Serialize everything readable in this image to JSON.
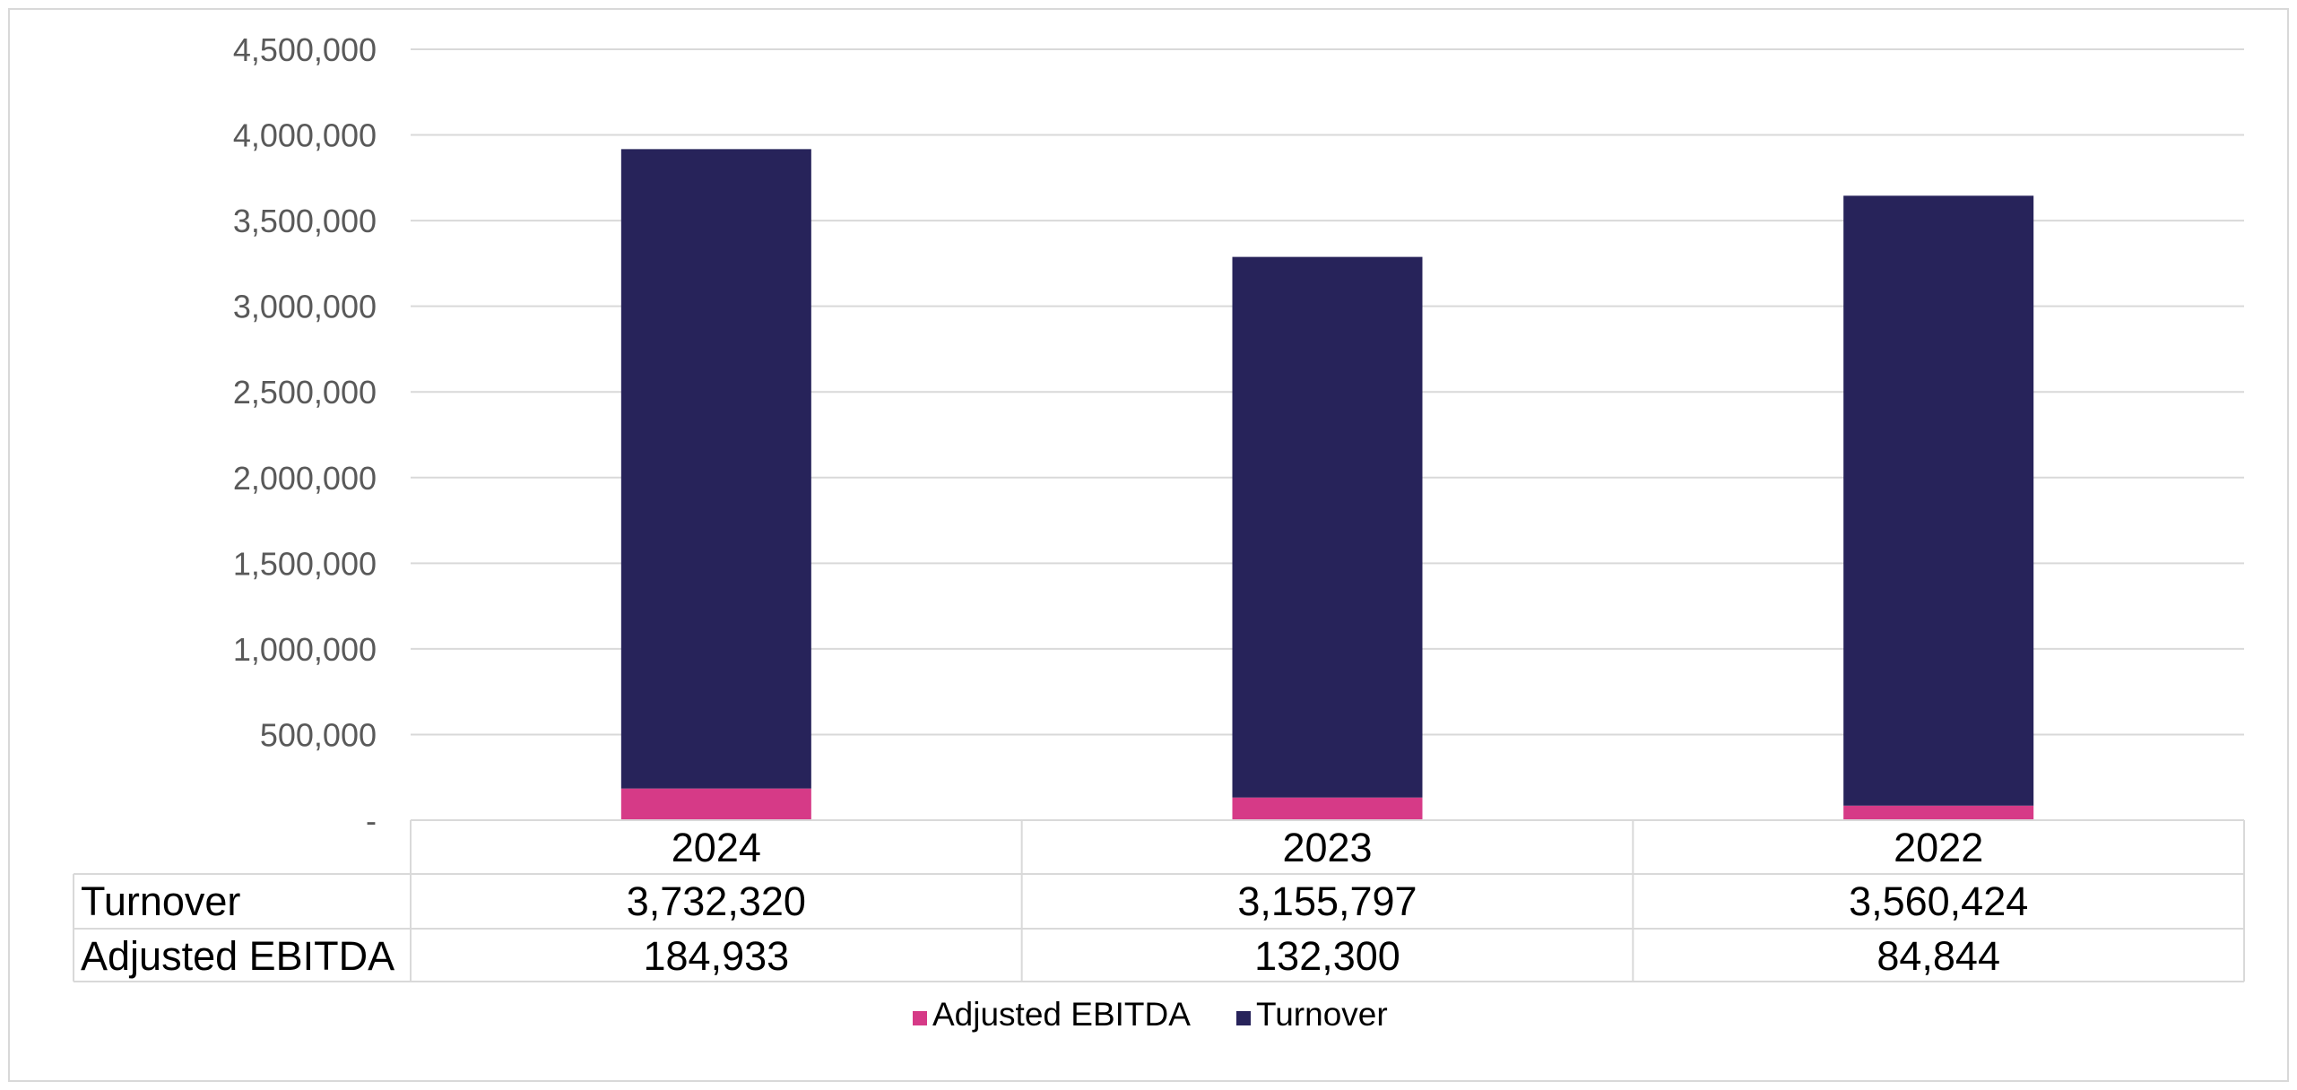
{
  "chart_data": {
    "type": "bar",
    "stacked": true,
    "categories": [
      "2024",
      "2023",
      "2022"
    ],
    "series": [
      {
        "name": "Adjusted EBITDA",
        "values": [
          184933,
          132300,
          84844
        ],
        "color": "#d63a87"
      },
      {
        "name": "Turnover",
        "values": [
          3732320,
          3155797,
          3560424
        ],
        "color": "#27235a"
      }
    ],
    "ylim": [
      0,
      4500000
    ],
    "yticks": [
      0,
      500000,
      1000000,
      1500000,
      2000000,
      2500000,
      3000000,
      3500000,
      4000000,
      4500000
    ],
    "ytick_labels": [
      "-",
      "500,000",
      "1,000,000",
      "1,500,000",
      "2,000,000",
      "2,500,000",
      "3,000,000",
      "3,500,000",
      "4,000,000",
      "4,500,000"
    ],
    "grid": true,
    "data_table": {
      "rows": [
        {
          "label": "Turnover",
          "values": [
            "3,732,320",
            "3,155,797",
            "3,560,424"
          ]
        },
        {
          "label": "Adjusted EBITDA",
          "values": [
            "184,933",
            "132,300",
            "84,844"
          ]
        }
      ]
    },
    "legend": {
      "position": "bottom",
      "entries": [
        "Adjusted EBITDA",
        "Turnover"
      ]
    },
    "title": "",
    "xlabel": "",
    "ylabel": ""
  }
}
